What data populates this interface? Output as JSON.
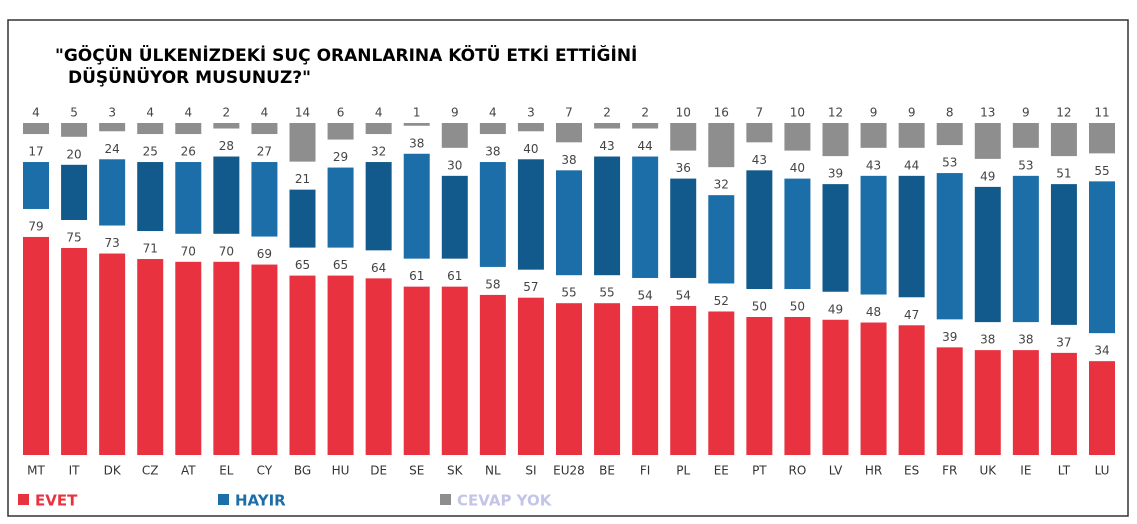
{
  "chart_data": {
    "type": "stacked_bar",
    "title": [
      "\"GÖÇÜN ÜLKENİZDEKİ SUÇ ORANLARINA KÖTÜ ETKİ ETTİĞİNİ",
      "DÜŞÜNÜYOR MUSUNUZ?\""
    ],
    "categories": [
      "MT",
      "IT",
      "DK",
      "CZ",
      "AT",
      "EL",
      "CY",
      "BG",
      "HU",
      "DE",
      "SE",
      "SK",
      "NL",
      "SI",
      "EU28",
      "BE",
      "FI",
      "PL",
      "EE",
      "PT",
      "RO",
      "LV",
      "HR",
      "ES",
      "FR",
      "UK",
      "IE",
      "LT",
      "LU"
    ],
    "series": [
      {
        "name": "EVET",
        "color": "#e8323f",
        "values": [
          79,
          75,
          73,
          71,
          70,
          70,
          69,
          65,
          65,
          64,
          61,
          61,
          58,
          57,
          55,
          55,
          54,
          54,
          52,
          50,
          50,
          49,
          48,
          47,
          39,
          38,
          38,
          37,
          34
        ]
      },
      {
        "name": "HAYIR",
        "color": "#1b6ea8",
        "values": [
          17,
          20,
          24,
          25,
          26,
          28,
          27,
          21,
          29,
          32,
          38,
          30,
          38,
          40,
          38,
          43,
          44,
          36,
          32,
          43,
          40,
          39,
          43,
          44,
          53,
          49,
          53,
          51,
          55
        ]
      },
      {
        "name": "CEVAP YOK",
        "color": "#8e8e8e",
        "values": [
          4,
          5,
          3,
          4,
          4,
          2,
          4,
          14,
          6,
          4,
          1,
          9,
          4,
          3,
          7,
          2,
          2,
          10,
          16,
          7,
          10,
          12,
          9,
          9,
          8,
          13,
          9,
          12,
          11
        ]
      }
    ],
    "legend": "bottom-left"
  }
}
